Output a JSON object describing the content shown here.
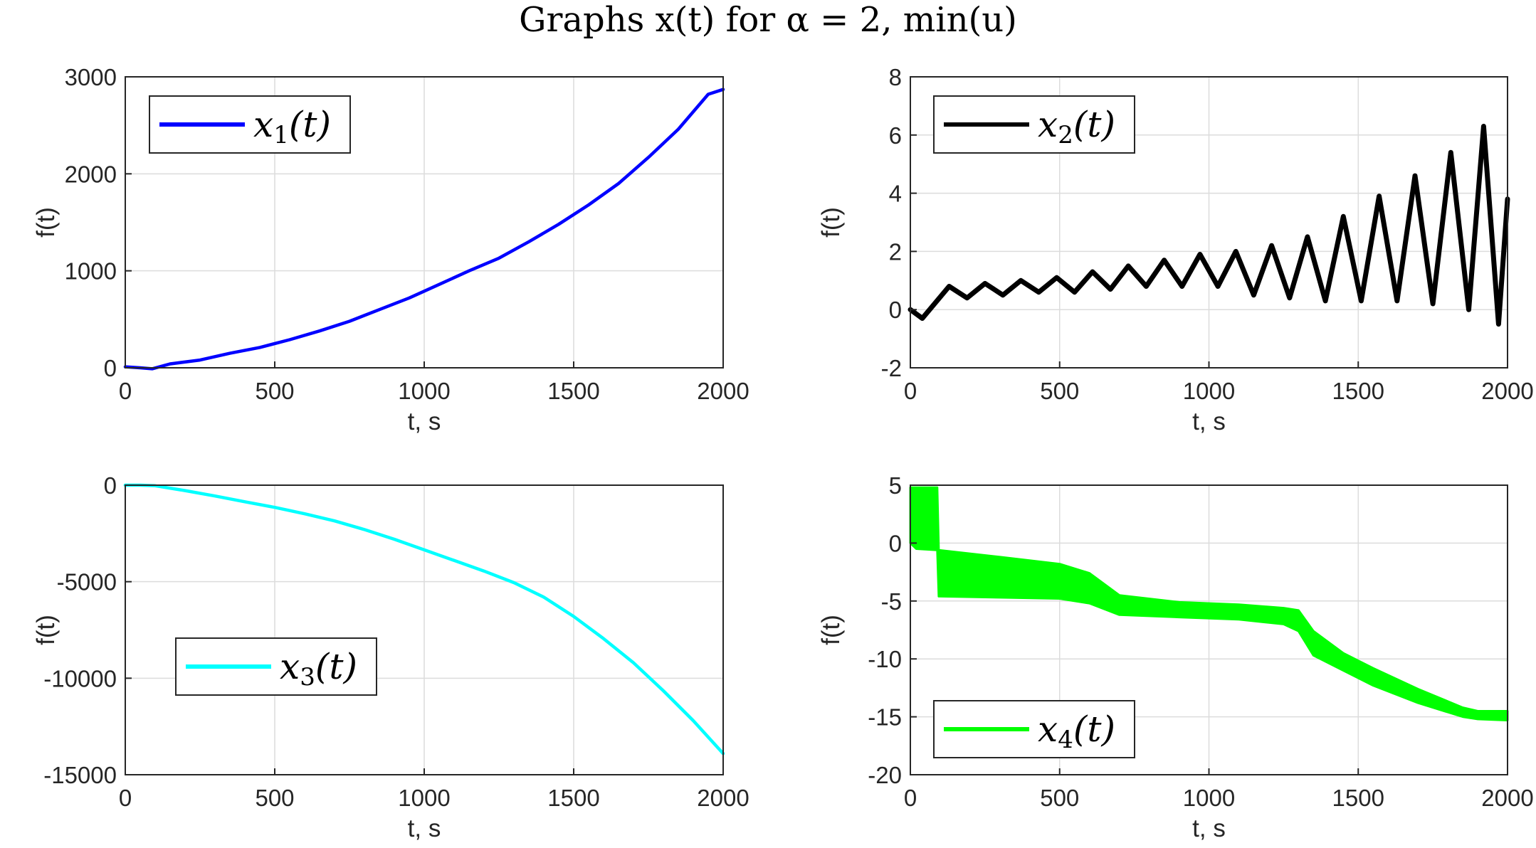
{
  "figure": {
    "title": "Graphs x(t) for α = 2, min(u)"
  },
  "chart_data": [
    {
      "type": "line",
      "xlabel": "t, s",
      "ylabel": "f(t)",
      "xlim": [
        0,
        2000
      ],
      "ylim": [
        0,
        3000
      ],
      "xticks": [
        0,
        500,
        1000,
        1500,
        2000
      ],
      "yticks": [
        0,
        1000,
        2000,
        3000
      ],
      "xtick_labels": [
        "0",
        "500",
        "1000",
        "1500",
        "2000"
      ],
      "ytick_labels": [
        "0",
        "1000",
        "2000",
        "3000"
      ],
      "grid": true,
      "legend_position": "top-left",
      "series": [
        {
          "name": "x1(t)",
          "color": "#0000ff",
          "x": [
            0,
            50,
            90,
            150,
            250,
            350,
            450,
            550,
            650,
            750,
            850,
            950,
            1050,
            1150,
            1250,
            1350,
            1450,
            1550,
            1650,
            1750,
            1850,
            1950,
            2000
          ],
          "y": [
            10,
            0,
            -10,
            40,
            80,
            150,
            210,
            290,
            380,
            480,
            600,
            720,
            860,
            1000,
            1130,
            1300,
            1480,
            1680,
            1900,
            2170,
            2460,
            2820,
            2870
          ]
        }
      ]
    },
    {
      "type": "line",
      "xlabel": "t, s",
      "ylabel": "f(t)",
      "xlim": [
        0,
        2000
      ],
      "ylim": [
        -2,
        8
      ],
      "xticks": [
        0,
        500,
        1000,
        1500,
        2000
      ],
      "yticks": [
        -2,
        0,
        2,
        4,
        6,
        8
      ],
      "xtick_labels": [
        "0",
        "500",
        "1000",
        "1500",
        "2000"
      ],
      "ytick_labels": [
        "-2",
        "0",
        "2",
        "4",
        "6",
        "8"
      ],
      "grid": true,
      "legend_position": "top-left",
      "series": [
        {
          "name": "x2(t)",
          "color": "#000000",
          "x": [
            0,
            40,
            130,
            190,
            250,
            310,
            370,
            430,
            490,
            550,
            610,
            670,
            730,
            790,
            850,
            910,
            970,
            1030,
            1090,
            1150,
            1210,
            1270,
            1330,
            1390,
            1450,
            1510,
            1570,
            1630,
            1690,
            1750,
            1810,
            1870,
            1920,
            1970,
            2000
          ],
          "y": [
            0,
            -0.3,
            0.8,
            0.4,
            0.9,
            0.5,
            1.0,
            0.6,
            1.1,
            0.6,
            1.3,
            0.7,
            1.5,
            0.8,
            1.7,
            0.8,
            1.9,
            0.8,
            2.0,
            0.5,
            2.2,
            0.4,
            2.5,
            0.3,
            3.2,
            0.3,
            3.9,
            0.3,
            4.6,
            0.2,
            5.4,
            0.0,
            6.3,
            -0.5,
            3.8
          ]
        }
      ]
    },
    {
      "type": "line",
      "xlabel": "t, s",
      "ylabel": "f(t)",
      "xlim": [
        0,
        2000
      ],
      "ylim": [
        -15000,
        0
      ],
      "xticks": [
        0,
        500,
        1000,
        1500,
        2000
      ],
      "yticks": [
        -15000,
        -10000,
        -5000,
        0
      ],
      "xtick_labels": [
        "0",
        "500",
        "1000",
        "1500",
        "2000"
      ],
      "ytick_labels": [
        "-15000",
        "-10000",
        "-5000",
        "0"
      ],
      "grid": true,
      "legend_position": "left",
      "series": [
        {
          "name": "x3(t)",
          "color": "#00ffff",
          "x": [
            0,
            50,
            100,
            200,
            300,
            400,
            500,
            600,
            700,
            800,
            900,
            1000,
            1100,
            1200,
            1300,
            1400,
            1500,
            1600,
            1700,
            1800,
            1900,
            2000
          ],
          "y": [
            0,
            0,
            -30,
            -280,
            -560,
            -860,
            -1150,
            -1480,
            -1850,
            -2300,
            -2800,
            -3350,
            -3900,
            -4450,
            -5050,
            -5800,
            -6800,
            -7950,
            -9200,
            -10650,
            -12200,
            -13900
          ]
        }
      ]
    },
    {
      "type": "area",
      "xlabel": "t, s",
      "ylabel": "f(t)",
      "xlim": [
        0,
        2000
      ],
      "ylim": [
        -20,
        5
      ],
      "xticks": [
        0,
        500,
        1000,
        1500,
        2000
      ],
      "yticks": [
        -20,
        -15,
        -10,
        -5,
        0,
        5
      ],
      "xtick_labels": [
        "0",
        "500",
        "1000",
        "1500",
        "2000"
      ],
      "ytick_labels": [
        "-20",
        "-15",
        "-10",
        "-5",
        "0",
        "5"
      ],
      "grid": true,
      "legend_position": "bottom-left",
      "series": [
        {
          "name": "x4(t)",
          "color": "#00ff00",
          "x": [
            0,
            20,
            90,
            95,
            300,
            500,
            600,
            700,
            900,
            1100,
            1250,
            1300,
            1350,
            1450,
            1550,
            1700,
            1850,
            1900,
            2000
          ],
          "y_upper": [
            4.8,
            4.8,
            4.8,
            -0.6,
            -1.2,
            -1.8,
            -2.6,
            -4.5,
            -5.1,
            -5.3,
            -5.6,
            -5.8,
            -7.6,
            -9.5,
            -10.8,
            -12.6,
            -14.2,
            -14.5,
            -14.5
          ],
          "y_lower": [
            0,
            -0.5,
            -0.6,
            -4.6,
            -4.7,
            -4.8,
            -5.2,
            -6.2,
            -6.4,
            -6.6,
            -7.0,
            -7.6,
            -9.7,
            -11.0,
            -12.3,
            -13.8,
            -15.0,
            -15.2,
            -15.3
          ]
        }
      ]
    }
  ]
}
